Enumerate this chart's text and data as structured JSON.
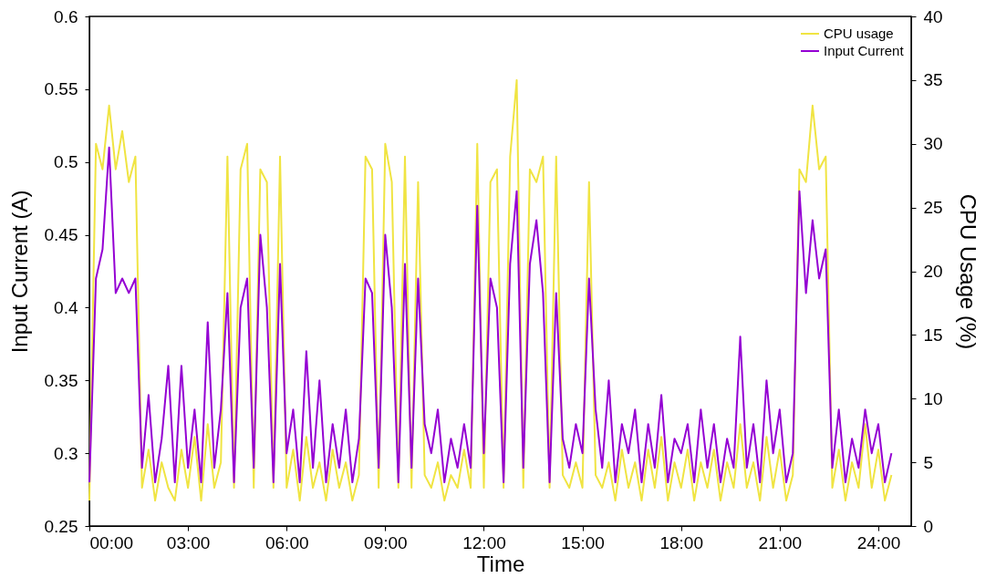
{
  "chart_data": {
    "type": "line",
    "xlabel": "Time",
    "ylabel": "Input Current (A)",
    "y2label": "CPU Usage (%)",
    "x": [
      0,
      0.2,
      0.4,
      0.6,
      0.8,
      1.0,
      1.2,
      1.4,
      1.6,
      1.8,
      2.0,
      2.2,
      2.4,
      2.6,
      2.8,
      3.0,
      3.2,
      3.4,
      3.6,
      3.8,
      4.0,
      4.2,
      4.4,
      4.6,
      4.8,
      5.0,
      5.2,
      5.4,
      5.6,
      5.8,
      6.0,
      6.2,
      6.4,
      6.6,
      6.8,
      7.0,
      7.2,
      7.4,
      7.6,
      7.8,
      8.0,
      8.2,
      8.4,
      8.6,
      8.8,
      9.0,
      9.2,
      9.4,
      9.6,
      9.8,
      10.0,
      10.2,
      10.4,
      10.6,
      10.8,
      11.0,
      11.2,
      11.4,
      11.6,
      11.8,
      12.0,
      12.2,
      12.4,
      12.6,
      12.8,
      13.0,
      13.2,
      13.4,
      13.6,
      13.8,
      14.0,
      14.2,
      14.4,
      14.6,
      14.8,
      15.0,
      15.2,
      15.4,
      15.6,
      15.8,
      16.0,
      16.2,
      16.4,
      16.6,
      16.8,
      17.0,
      17.2,
      17.4,
      17.6,
      17.8,
      18.0,
      18.2,
      18.4,
      18.6,
      18.8,
      19.0,
      19.2,
      19.4,
      19.6,
      19.8,
      20.0,
      20.2,
      20.4,
      20.6,
      20.8,
      21.0,
      21.2,
      21.4,
      21.6,
      21.8,
      22.0,
      22.2,
      22.4,
      22.6,
      22.8,
      23.0,
      23.2,
      23.4,
      23.6,
      23.8,
      24.0,
      24.2,
      24.4
    ],
    "series": [
      {
        "name": "CPU usage",
        "color": "#f0e442",
        "axis": "y2",
        "values": [
          2,
          30,
          28,
          33,
          28,
          31,
          27,
          29,
          3,
          6,
          2,
          5,
          3,
          2,
          6,
          3,
          7,
          2,
          8,
          3,
          5,
          29,
          3,
          28,
          30,
          3,
          28,
          27,
          3,
          29,
          3,
          6,
          2,
          7,
          3,
          5,
          2,
          6,
          3,
          5,
          2,
          4,
          29,
          28,
          3,
          30,
          27,
          3,
          29,
          3,
          27,
          4,
          3,
          5,
          2,
          4,
          3,
          6,
          3,
          30,
          3,
          27,
          28,
          3,
          29,
          35,
          3,
          28,
          27,
          29,
          3,
          29,
          4,
          3,
          5,
          3,
          27,
          4,
          3,
          5,
          2,
          6,
          3,
          5,
          2,
          6,
          3,
          7,
          2,
          5,
          3,
          6,
          2,
          5,
          3,
          6,
          2,
          5,
          3,
          8,
          3,
          5,
          2,
          7,
          3,
          6,
          2,
          4,
          28,
          27,
          33,
          28,
          29,
          3,
          6,
          2,
          5,
          3,
          8,
          3,
          6,
          2,
          4
        ]
      },
      {
        "name": "Input Current",
        "color": "#9400d3",
        "axis": "y",
        "values": [
          0.28,
          0.42,
          0.44,
          0.51,
          0.41,
          0.42,
          0.41,
          0.42,
          0.29,
          0.34,
          0.28,
          0.31,
          0.36,
          0.28,
          0.36,
          0.29,
          0.33,
          0.28,
          0.39,
          0.29,
          0.33,
          0.41,
          0.28,
          0.4,
          0.42,
          0.29,
          0.45,
          0.4,
          0.28,
          0.43,
          0.3,
          0.33,
          0.28,
          0.37,
          0.29,
          0.35,
          0.28,
          0.32,
          0.29,
          0.33,
          0.28,
          0.31,
          0.42,
          0.41,
          0.29,
          0.45,
          0.4,
          0.28,
          0.43,
          0.29,
          0.42,
          0.32,
          0.3,
          0.33,
          0.28,
          0.31,
          0.29,
          0.32,
          0.29,
          0.47,
          0.3,
          0.42,
          0.4,
          0.28,
          0.43,
          0.48,
          0.29,
          0.43,
          0.46,
          0.41,
          0.28,
          0.41,
          0.31,
          0.29,
          0.32,
          0.3,
          0.42,
          0.33,
          0.29,
          0.35,
          0.28,
          0.32,
          0.3,
          0.33,
          0.28,
          0.32,
          0.29,
          0.34,
          0.28,
          0.31,
          0.3,
          0.32,
          0.28,
          0.33,
          0.29,
          0.32,
          0.28,
          0.31,
          0.29,
          0.38,
          0.29,
          0.32,
          0.28,
          0.35,
          0.3,
          0.33,
          0.28,
          0.3,
          0.48,
          0.41,
          0.46,
          0.42,
          0.44,
          0.29,
          0.33,
          0.28,
          0.31,
          0.29,
          0.33,
          0.3,
          0.32,
          0.28,
          0.3
        ]
      }
    ],
    "xlim": [
      0,
      25
    ],
    "xticks": [
      {
        "value": 0,
        "label": "00:00"
      },
      {
        "value": 3,
        "label": "03:00"
      },
      {
        "value": 6,
        "label": "06:00"
      },
      {
        "value": 9,
        "label": "09:00"
      },
      {
        "value": 12,
        "label": "12:00"
      },
      {
        "value": 15,
        "label": "15:00"
      },
      {
        "value": 18,
        "label": "18:00"
      },
      {
        "value": 21,
        "label": "21:00"
      },
      {
        "value": 24,
        "label": "24:00"
      }
    ],
    "ylim": [
      0.25,
      0.6
    ],
    "yticks": [
      0.25,
      0.3,
      0.35,
      0.4,
      0.45,
      0.5,
      0.55,
      0.6
    ],
    "y2lim": [
      0,
      40
    ],
    "y2ticks": [
      0,
      5,
      10,
      15,
      20,
      25,
      30,
      35,
      40
    ],
    "legend": "top right"
  }
}
